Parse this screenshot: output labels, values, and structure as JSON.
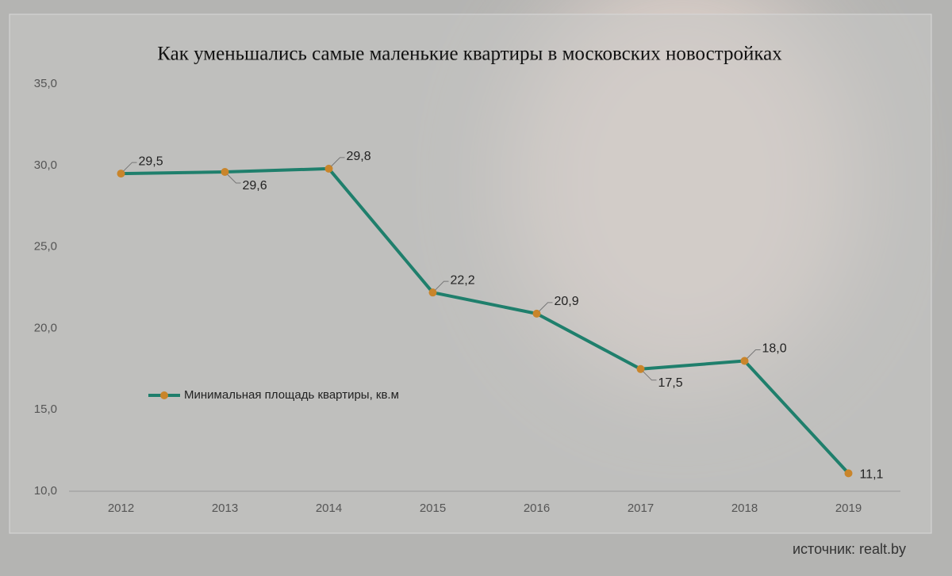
{
  "chart_data": {
    "type": "line",
    "title": "Как уменьшались самые маленькие квартиры в московских новостройках",
    "categories": [
      "2012",
      "2013",
      "2014",
      "2015",
      "2016",
      "2017",
      "2018",
      "2019"
    ],
    "series": [
      {
        "name": "Минимальная площадь квартиры, кв.м",
        "color": "#1f7f6c",
        "marker_color": "#c9852b",
        "values": [
          29.5,
          29.6,
          29.8,
          22.2,
          20.9,
          17.5,
          18.0,
          11.1
        ],
        "value_labels": [
          "29,5",
          "29,6",
          "29,8",
          "22,2",
          "20,9",
          "17,5",
          "18,0",
          "11,1"
        ]
      }
    ],
    "ylim": [
      10,
      35
    ],
    "yticks": [
      {
        "value": 10,
        "label": "10,0"
      },
      {
        "value": 15,
        "label": "15,0"
      },
      {
        "value": 20,
        "label": "20,0"
      },
      {
        "value": 25,
        "label": "25,0"
      },
      {
        "value": 30,
        "label": "30,0"
      },
      {
        "value": 35,
        "label": "35,0"
      }
    ],
    "legend": "left",
    "source": "источник: realt.by"
  }
}
